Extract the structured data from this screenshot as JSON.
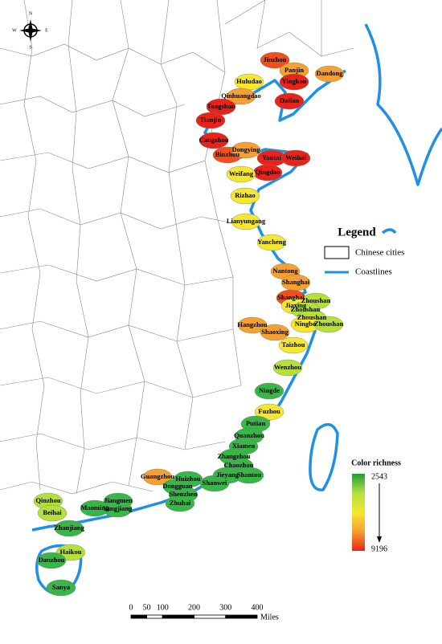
{
  "compass": {
    "n": "N",
    "s": "S",
    "e": "E",
    "w": "W"
  },
  "cities": [
    {
      "name": "Jinzhou",
      "color": "#f0501e"
    },
    {
      "name": "Panjin",
      "color": "#f5a030"
    },
    {
      "name": "Dandong",
      "color": "#f5a030"
    },
    {
      "name": "Huludao",
      "color": "#f5e630"
    },
    {
      "name": "Yingkou",
      "color": "#e8231c"
    },
    {
      "name": "Qinhuangdao",
      "color": "#f5a030"
    },
    {
      "name": "Dalian",
      "color": "#e8231c"
    },
    {
      "name": "Tangshan",
      "color": "#e8231c"
    },
    {
      "name": "Tianjin",
      "color": "#e8231c"
    },
    {
      "name": "Cangzhou",
      "color": "#e8231c"
    },
    {
      "name": "Binzhou",
      "color": "#f0501e"
    },
    {
      "name": "Dongying",
      "color": "#f5a030"
    },
    {
      "name": "Yantai",
      "color": "#e8231c"
    },
    {
      "name": "Weihai",
      "color": "#e8231c"
    },
    {
      "name": "Qingdao",
      "color": "#e8231c"
    },
    {
      "name": "Weifang",
      "color": "#f5e630"
    },
    {
      "name": "Rizhao",
      "color": "#f5e630"
    },
    {
      "name": "Lianyungang",
      "color": "#f5e630"
    },
    {
      "name": "Yancheng",
      "color": "#f5e630"
    },
    {
      "name": "Nantong",
      "color": "#f5a030"
    },
    {
      "name": "Shanghai",
      "color": "#f5a030"
    },
    {
      "name": "Shanghai",
      "color": "#f0501e"
    },
    {
      "name": "Zhoushan",
      "color": "#b5e03c"
    },
    {
      "name": "Jiaxing",
      "color": "#f5e630"
    },
    {
      "name": "Zhoushan",
      "color": "#b5e03c"
    },
    {
      "name": "Zhoushan",
      "color": "#b5e03c"
    },
    {
      "name": "Hangzhou",
      "color": "#f5a030"
    },
    {
      "name": "Ningbo",
      "color": "#f5e630"
    },
    {
      "name": "Zhoushan",
      "color": "#b5e03c"
    },
    {
      "name": "Shaoxing",
      "color": "#f5a030"
    },
    {
      "name": "Taizhou",
      "color": "#f5e630"
    },
    {
      "name": "Wenzhou",
      "color": "#b5e03c"
    },
    {
      "name": "Ningde",
      "color": "#39b54a"
    },
    {
      "name": "Fuzhou",
      "color": "#f5e630"
    },
    {
      "name": "Putian",
      "color": "#39b54a"
    },
    {
      "name": "Quanzhou",
      "color": "#39b54a"
    },
    {
      "name": "Xiamen",
      "color": "#39b54a"
    },
    {
      "name": "Zhangzhou",
      "color": "#39b54a"
    },
    {
      "name": "Chaozhou",
      "color": "#39b54a"
    },
    {
      "name": "Jieyang",
      "color": "#39b54a"
    },
    {
      "name": "Shantou",
      "color": "#39b54a"
    },
    {
      "name": "Shanwei",
      "color": "#39b54a"
    },
    {
      "name": "Guangzhou",
      "color": "#f5a030"
    },
    {
      "name": "Huizhou",
      "color": "#39b54a"
    },
    {
      "name": "Dongguan",
      "color": "#39b54a"
    },
    {
      "name": "Shenzhen",
      "color": "#39b54a"
    },
    {
      "name": "Zhuhai",
      "color": "#39b54a"
    },
    {
      "name": "Jiangmen",
      "color": "#39b54a"
    },
    {
      "name": "Yangjiang",
      "color": "#39b54a"
    },
    {
      "name": "Maoming",
      "color": "#39b54a"
    },
    {
      "name": "Qinzhou",
      "color": "#b5e03c"
    },
    {
      "name": "Beihai",
      "color": "#b5e03c"
    },
    {
      "name": "Zhanjiang",
      "color": "#39b54a"
    },
    {
      "name": "Haikou",
      "color": "#b5e03c"
    },
    {
      "name": "Danzhou",
      "color": "#39b54a"
    },
    {
      "name": "Sanya",
      "color": "#39b54a"
    }
  ],
  "legend": {
    "title": "Legend",
    "items": [
      {
        "label": "Chinese cities"
      },
      {
        "label": "Coastlines"
      }
    ]
  },
  "color_scale": {
    "title": "Color richness",
    "min": "2543",
    "max": "9196",
    "colors": [
      "#1f9e3a",
      "#b5e03c",
      "#f5e630",
      "#f5a030",
      "#e8231c"
    ]
  },
  "scale_bar": {
    "ticks": [
      "0",
      "50",
      "100",
      "200",
      "300",
      "400"
    ],
    "unit": "Miles"
  }
}
